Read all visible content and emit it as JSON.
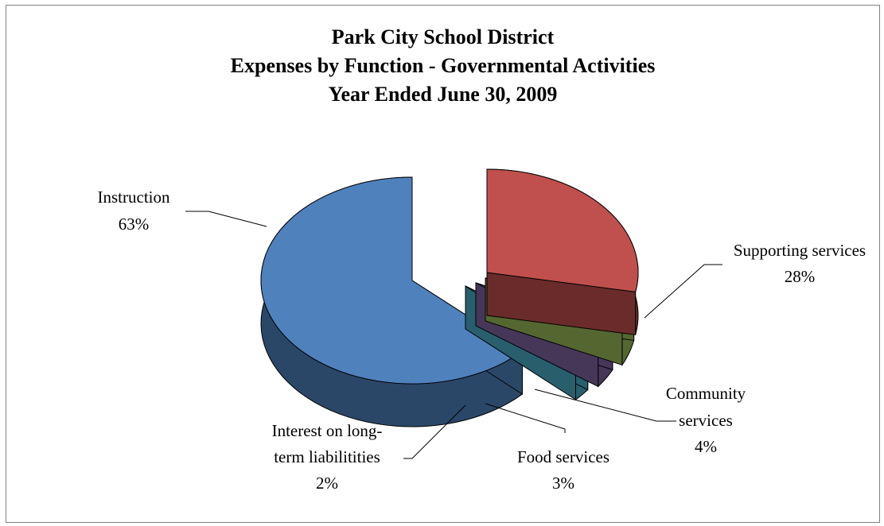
{
  "chart_data": {
    "type": "pie",
    "title": "Park City School District",
    "subtitle": "Expenses by Function - Governmental Activities",
    "subtitle2": "Year Ended June 30, 2009",
    "slices": [
      {
        "label": "Instruction",
        "value": 63,
        "pct_text": "63%",
        "color": "#4f81bd"
      },
      {
        "label": "Supporting services",
        "value": 28,
        "pct_text": "28%",
        "color": "#c0504d"
      },
      {
        "label": "Community services",
        "value": 4,
        "pct_text": "4%",
        "color": "#9bbb59"
      },
      {
        "label": "Food services",
        "value": 3,
        "pct_text": "3%",
        "color": "#8064a2"
      },
      {
        "label": "Interest on long-term liabilitities",
        "value": 2,
        "pct_text": "2%",
        "color": "#4bacc6"
      }
    ],
    "label_lines": {
      "instruction": [
        "Instruction"
      ],
      "supporting": [
        "Supporting services"
      ],
      "community": [
        "Community",
        "services"
      ],
      "food": [
        "Food services"
      ],
      "interest": [
        "Interest on long-",
        "term liabilitities"
      ]
    },
    "legend": "none",
    "style": "3d-exploded"
  }
}
